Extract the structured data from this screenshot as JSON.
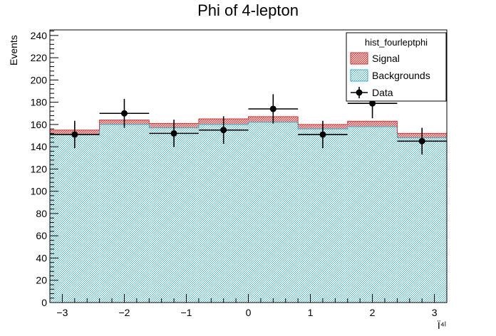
{
  "chart_data": {
    "type": "bar",
    "title": "Phi of 4-lepton",
    "xlabel": "Ï⁴ˡ",
    "ylabel": "Events",
    "xlim": [
      -3.2,
      3.2
    ],
    "ylim": [
      0,
      245
    ],
    "x_ticks": [
      -3,
      -2,
      -1,
      0,
      1,
      2,
      3
    ],
    "y_ticks": [
      0,
      20,
      40,
      60,
      80,
      100,
      120,
      140,
      160,
      180,
      200,
      220,
      240
    ],
    "bin_edges": [
      -3.2,
      -2.4,
      -1.6,
      -0.8,
      0.0,
      0.8,
      1.6,
      2.4,
      3.2
    ],
    "series": [
      {
        "name": "Backgrounds",
        "kind": "stack",
        "color": "#7fd0e8",
        "edge": "#3aa9c9",
        "values": [
          151,
          160,
          157,
          160,
          162,
          156,
          158,
          148
        ]
      },
      {
        "name": "Signal",
        "kind": "stack",
        "color": "#e89a9a",
        "edge": "#c83737",
        "values": [
          4,
          4,
          4,
          5,
          5,
          4,
          5,
          4
        ]
      },
      {
        "name": "Data",
        "kind": "points",
        "color": "#000000",
        "x": [
          -2.8,
          -2.0,
          -1.2,
          -0.4,
          0.4,
          1.2,
          2.0,
          2.8
        ],
        "values": [
          151,
          170,
          152,
          155,
          174,
          151,
          179,
          145
        ],
        "errors": [
          12.3,
          13.0,
          12.3,
          12.4,
          13.2,
          12.3,
          13.4,
          12.0
        ]
      }
    ],
    "legend": {
      "title": "hist_fourleptphi",
      "position": "top-right"
    }
  }
}
